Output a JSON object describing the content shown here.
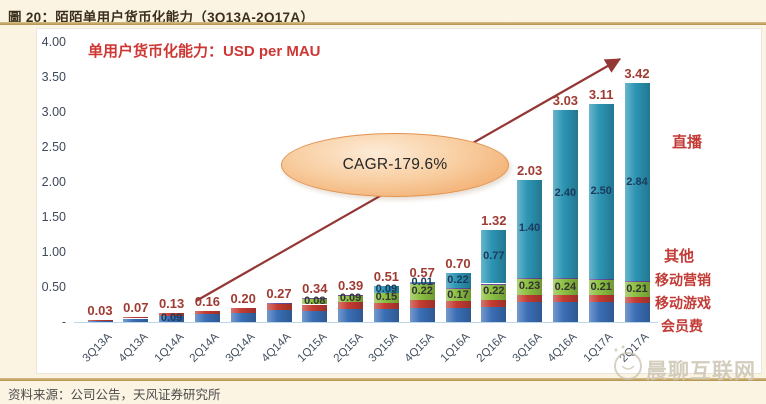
{
  "page": {
    "background": "#FCF4E3",
    "accent_gold": "#C2A05C",
    "accent_red": "#CE3834"
  },
  "header": {
    "title": "圖 20：陌陌单用户货币化能力（3Q13A-2Q17A）"
  },
  "footer": {
    "source": "资料来源：公司公告，天风证券研究所"
  },
  "watermark": {
    "text": "晨聊互联网"
  },
  "chart_data": {
    "type": "bar",
    "stacked": true,
    "title": "单用户货币化能力：USD per MAU",
    "annotation": "CAGR-179.6%",
    "ylim": [
      0,
      4
    ],
    "grid": false,
    "y_ticks": [
      "4.00",
      "3.50",
      "3.00",
      "2.50",
      "2.00",
      "1.50",
      "1.00",
      "0.50",
      "-"
    ],
    "y_tick_values": [
      4,
      3.5,
      3,
      2.5,
      2,
      1.5,
      1,
      0.5,
      0
    ],
    "categories": [
      "3Q13A",
      "4Q13A",
      "1Q14A",
      "2Q14A",
      "3Q14A",
      "4Q14A",
      "1Q15A",
      "2Q15A",
      "3Q15A",
      "4Q15A",
      "1Q16A",
      "2Q16A",
      "3Q16A",
      "4Q16A",
      "1Q17A",
      "2Q17A"
    ],
    "totals": [
      0.03,
      0.07,
      0.13,
      0.16,
      0.2,
      0.27,
      0.34,
      0.39,
      0.51,
      0.57,
      0.7,
      1.32,
      2.03,
      3.03,
      3.11,
      3.42
    ],
    "total_labels": [
      "0.03",
      "0.07",
      "0.13",
      "0.16",
      "0.20",
      "0.27",
      "0.34",
      "0.39",
      "0.51",
      "0.57",
      "0.70",
      "1.32",
      "2.03",
      "3.03",
      "3.11",
      "3.42"
    ],
    "series": [
      {
        "name": "会员费",
        "color": "#3A6EB5",
        "values": [
          0.02,
          0.05,
          0.09,
          0.11,
          0.13,
          0.17,
          0.16,
          0.18,
          0.19,
          0.2,
          0.2,
          0.21,
          0.28,
          0.28,
          0.29,
          0.27
        ]
      },
      {
        "name": "移动游戏",
        "color": "#C33B32",
        "values": [
          0.01,
          0.02,
          0.04,
          0.05,
          0.07,
          0.09,
          0.09,
          0.11,
          0.08,
          0.12,
          0.1,
          0.11,
          0.11,
          0.1,
          0.1,
          0.09
        ]
      },
      {
        "name": "移动营销",
        "color": "#8CC041",
        "values": [
          0,
          0,
          0,
          0,
          0,
          0,
          0.08,
          0.09,
          0.15,
          0.22,
          0.17,
          0.22,
          0.23,
          0.24,
          0.21,
          0.21
        ]
      },
      {
        "name": "其他",
        "color": "#6A4C9F",
        "values": [
          0,
          0,
          0,
          0,
          0,
          0.01,
          0.01,
          0.01,
          0,
          0.02,
          0.01,
          0.01,
          0.01,
          0.01,
          0.01,
          0.01
        ]
      },
      {
        "name": "直播",
        "color": "#2C95B4",
        "values": [
          0,
          0,
          0,
          0,
          0,
          0,
          0,
          0,
          0.09,
          0.01,
          0.22,
          0.77,
          1.4,
          2.4,
          2.5,
          2.84
        ]
      }
    ],
    "inner_labels": [
      {
        "index": 2,
        "series": "会员费",
        "text": "0.09"
      },
      {
        "index": 6,
        "series": "移动营销",
        "text": "0.08"
      },
      {
        "index": 7,
        "series": "移动营销",
        "text": "0.09"
      },
      {
        "index": 8,
        "series": "直播",
        "text": "0.09"
      },
      {
        "index": 8,
        "series": "移动营销",
        "text": "0.15"
      },
      {
        "index": 9,
        "series": "直播",
        "text": "0.01"
      },
      {
        "index": 9,
        "series": "移动营销",
        "text": "0.22"
      },
      {
        "index": 10,
        "series": "直播",
        "text": "0.22"
      },
      {
        "index": 10,
        "series": "移动营销",
        "text": "0.17"
      },
      {
        "index": 11,
        "series": "直播",
        "text": "0.77"
      },
      {
        "index": 11,
        "series": "移动营销",
        "text": "0.22"
      },
      {
        "index": 12,
        "series": "直播",
        "text": "1.40"
      },
      {
        "index": 12,
        "series": "移动营销",
        "text": "0.23"
      },
      {
        "index": 13,
        "series": "直播",
        "text": "2.40"
      },
      {
        "index": 13,
        "series": "移动营销",
        "text": "0.24"
      },
      {
        "index": 14,
        "series": "直播",
        "text": "2.50"
      },
      {
        "index": 14,
        "series": "移动营销",
        "text": "0.21"
      },
      {
        "index": 15,
        "series": "直播",
        "text": "2.84"
      },
      {
        "index": 15,
        "series": "移动营销",
        "text": "0.21"
      }
    ],
    "legend": {
      "position": "right",
      "items": [
        "直播",
        "其他",
        "移动营销",
        "移动游戏",
        "会员费"
      ]
    },
    "label_colors": {
      "total": "#9F3B33",
      "live_inner": "#1B3A5C",
      "other_inner": "#333333"
    }
  }
}
